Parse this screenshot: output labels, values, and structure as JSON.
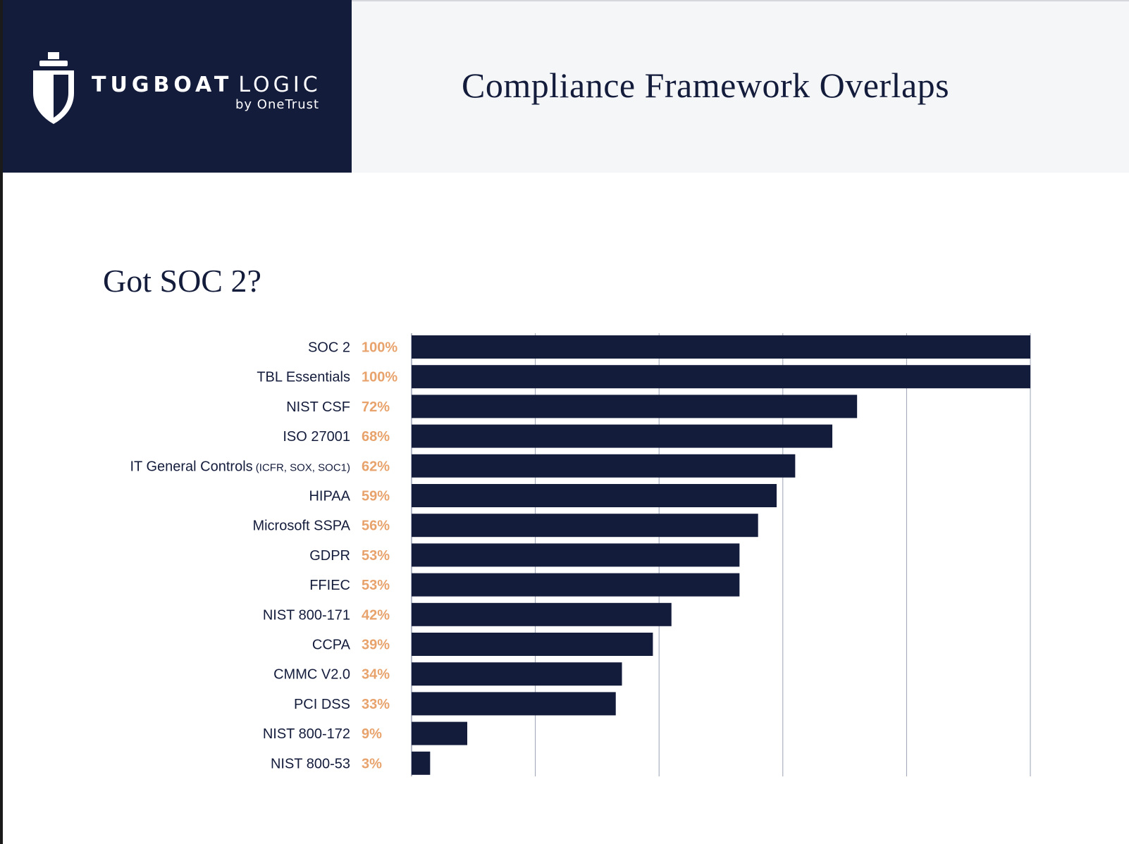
{
  "header": {
    "brand_primary": "TUGBOAT",
    "brand_secondary": "LOGIC",
    "brand_tagline": "by OneTrust",
    "title": "Compliance Framework Overlaps",
    "logo_icon": "tugboat-shield-icon"
  },
  "colors": {
    "navy": "#141c3c",
    "accent": "#e8a36d",
    "grid": "#9aa1b3"
  },
  "chart_data": {
    "type": "bar",
    "orientation": "horizontal",
    "title": "Got SOC 2?",
    "xlabel": "",
    "ylabel": "",
    "xlim": [
      0,
      100
    ],
    "grid": true,
    "legend": "none",
    "categories": [
      {
        "name": "SOC 2",
        "note": ""
      },
      {
        "name": "TBL Essentials",
        "note": ""
      },
      {
        "name": "NIST CSF",
        "note": ""
      },
      {
        "name": "ISO 27001",
        "note": ""
      },
      {
        "name": "IT General Controls",
        "note": "(ICFR, SOX, SOC1)"
      },
      {
        "name": "HIPAA",
        "note": ""
      },
      {
        "name": "Microsoft SSPA",
        "note": ""
      },
      {
        "name": "GDPR",
        "note": ""
      },
      {
        "name": "FFIEC",
        "note": ""
      },
      {
        "name": "NIST 800-171",
        "note": ""
      },
      {
        "name": "CCPA",
        "note": ""
      },
      {
        "name": "CMMC V2.0",
        "note": ""
      },
      {
        "name": "PCI DSS",
        "note": ""
      },
      {
        "name": "NIST 800-172",
        "note": ""
      },
      {
        "name": "NIST 800-53",
        "note": ""
      }
    ],
    "values": [
      100,
      100,
      72,
      68,
      62,
      59,
      56,
      53,
      53,
      42,
      39,
      34,
      33,
      9,
      3
    ],
    "value_labels": [
      "100%",
      "100%",
      "72%",
      "68%",
      "62%",
      "59%",
      "56%",
      "53%",
      "53%",
      "42%",
      "39%",
      "34%",
      "33%",
      "9%",
      "3%"
    ]
  }
}
